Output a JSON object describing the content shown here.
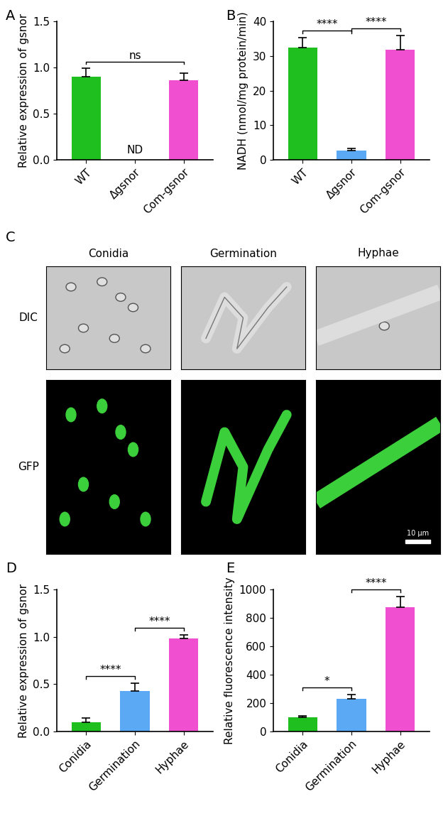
{
  "chart_data": [
    {
      "type": "bar",
      "panel": "A",
      "categories": [
        "WT",
        "Δgsnor",
        "Com-gsnor"
      ],
      "values": [
        0.9,
        null,
        0.86
      ],
      "errors": [
        0.09,
        null,
        0.08
      ],
      "colors": [
        "#1fbf1f",
        "#5ba8f5",
        "#f050d0"
      ],
      "y_label": "Relative expression of gsnor",
      "ylim": [
        0.0,
        1.5
      ],
      "yticks": [
        0.0,
        0.5,
        1.0,
        1.5
      ],
      "annotations": [
        {
          "category": "Δgsnor",
          "text": "ND"
        }
      ],
      "comparisons": [
        {
          "from": "WT",
          "to": "Com-gsnor",
          "label": "ns"
        }
      ]
    },
    {
      "type": "bar",
      "panel": "B",
      "categories": [
        "WT",
        "Δgsnor",
        "Com-gsnor"
      ],
      "values": [
        32.5,
        2.7,
        31.8
      ],
      "errors": [
        2.8,
        0.5,
        4.2
      ],
      "colors": [
        "#1fbf1f",
        "#5ba8f5",
        "#f050d0"
      ],
      "y_label": "NADH (nmol/mg protein/min)",
      "ylim": [
        0,
        40
      ],
      "yticks": [
        0,
        10,
        20,
        30,
        40
      ],
      "comparisons": [
        {
          "from": "WT",
          "to": "Δgsnor",
          "label": "****"
        },
        {
          "from": "Δgsnor",
          "to": "Com-gsnor",
          "label": "****"
        }
      ]
    },
    {
      "type": "image",
      "panel": "C",
      "columns": [
        "Conidia",
        "Germination",
        "Hyphae"
      ],
      "rows": [
        "DIC",
        "GFP"
      ],
      "scale_bar": "10 μm"
    },
    {
      "type": "bar",
      "panel": "D",
      "categories": [
        "Conidia",
        "Germination",
        "Hyphae"
      ],
      "values": [
        0.1,
        0.43,
        0.98
      ],
      "errors": [
        0.04,
        0.08,
        0.04
      ],
      "colors": [
        "#1fbf1f",
        "#5ba8f5",
        "#f050d0"
      ],
      "y_label": "Relative expression of gsnor",
      "ylim": [
        0.0,
        1.5
      ],
      "yticks": [
        0.0,
        0.5,
        1.0,
        1.5
      ],
      "comparisons": [
        {
          "from": "Conidia",
          "to": "Germination",
          "label": "****"
        },
        {
          "from": "Germination",
          "to": "Hyphae",
          "label": "****"
        }
      ]
    },
    {
      "type": "bar",
      "panel": "E",
      "categories": [
        "Conidia",
        "Germination",
        "Hyphae"
      ],
      "values": [
        100,
        232,
        875
      ],
      "errors": [
        12,
        28,
        75
      ],
      "colors": [
        "#1fbf1f",
        "#5ba8f5",
        "#f050d0"
      ],
      "y_label": "Relative fluorescence intensity",
      "ylim": [
        0,
        1000
      ],
      "yticks": [
        0,
        200,
        400,
        600,
        800,
        1000
      ],
      "comparisons": [
        {
          "from": "Conidia",
          "to": "Germination",
          "label": "*"
        },
        {
          "from": "Germination",
          "to": "Hyphae",
          "label": "****"
        }
      ]
    }
  ]
}
